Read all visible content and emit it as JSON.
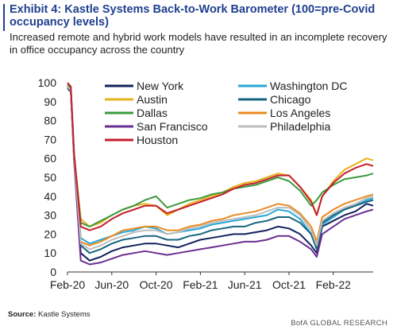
{
  "chart_data": {
    "type": "line",
    "title": "Exhibit 4: Kastle Systems Back-to-Work Barometer (100=pre-Covid occupancy levels)",
    "subtitle": "Increased remote and hybrid work models have resulted in an incomplete recovery in office occupancy across the country",
    "xlabel": "",
    "ylabel": "",
    "ylim": [
      0,
      100
    ],
    "yticks": [
      "0",
      "5",
      "10",
      "15",
      "20",
      "25",
      "30",
      "35",
      "40",
      "45",
      "50",
      "55",
      "60",
      "65",
      "70",
      "75",
      "80",
      "85",
      "90",
      "95",
      "100"
    ],
    "xticks": [
      "Feb-20",
      "Jun-20",
      "Oct-20",
      "Feb-21",
      "Jun-21",
      "Oct-21",
      "Feb-22"
    ],
    "grid": false,
    "legend_position": "top",
    "x": [
      0,
      0.3,
      0.6,
      1.2,
      2,
      3,
      4,
      5,
      6,
      7,
      8,
      9,
      10,
      11,
      12,
      13,
      14,
      15,
      16,
      17,
      18,
      19,
      20,
      21,
      22,
      22.5,
      23,
      24,
      25,
      26,
      27,
      27.6
    ],
    "series": [
      {
        "name": "New York",
        "color": "#13215e",
        "values": [
          98,
          96,
          60,
          10,
          6,
          8,
          11,
          13,
          14,
          15,
          15,
          14,
          13,
          15,
          17,
          18,
          19,
          20,
          20,
          21,
          22,
          24,
          23,
          20,
          14,
          10,
          24,
          27,
          30,
          32,
          36,
          35
        ]
      },
      {
        "name": "Washington DC",
        "color": "#27a7d6",
        "values": [
          98,
          96,
          60,
          18,
          15,
          17,
          19,
          21,
          22,
          24,
          23,
          20,
          21,
          22,
          23,
          25,
          26,
          27,
          28,
          29,
          30,
          33,
          32,
          28,
          20,
          12,
          25,
          29,
          33,
          35,
          38,
          39
        ]
      },
      {
        "name": "Austin",
        "color": "#e7b21d",
        "values": [
          99,
          97,
          62,
          28,
          24,
          26,
          30,
          33,
          35,
          36,
          35,
          30,
          33,
          36,
          38,
          40,
          42,
          45,
          47,
          48,
          50,
          52,
          51,
          45,
          38,
          30,
          40,
          48,
          54,
          57,
          60,
          59
        ]
      },
      {
        "name": "Chicago",
        "color": "#17647f",
        "values": [
          97,
          95,
          58,
          14,
          10,
          12,
          15,
          17,
          18,
          19,
          19,
          17,
          17,
          19,
          20,
          22,
          23,
          24,
          24,
          26,
          27,
          29,
          29,
          26,
          20,
          12,
          26,
          30,
          33,
          35,
          37,
          38
        ]
      },
      {
        "name": "Dallas",
        "color": "#3a9a3c",
        "values": [
          99,
          97,
          62,
          26,
          24,
          27,
          30,
          33,
          35,
          38,
          40,
          34,
          36,
          38,
          39,
          41,
          42,
          44,
          45,
          46,
          48,
          50,
          48,
          43,
          35,
          38,
          42,
          46,
          49,
          50,
          51,
          52
        ]
      },
      {
        "name": "Los Angeles",
        "color": "#ea8a22",
        "values": [
          98,
          96,
          60,
          16,
          14,
          16,
          19,
          22,
          23,
          24,
          24,
          22,
          22,
          24,
          25,
          27,
          28,
          30,
          31,
          32,
          34,
          36,
          35,
          31,
          24,
          16,
          29,
          33,
          36,
          38,
          40,
          41
        ]
      },
      {
        "name": "San Francisco",
        "color": "#6a2e8f",
        "values": [
          98,
          95,
          58,
          6,
          4,
          5,
          7,
          9,
          10,
          11,
          10,
          9,
          10,
          11,
          12,
          13,
          14,
          15,
          16,
          16,
          17,
          19,
          19,
          16,
          12,
          8,
          20,
          24,
          28,
          30,
          32,
          33
        ]
      },
      {
        "name": "Philadelphia",
        "color": "#bdbdbd",
        "values": [
          98,
          96,
          60,
          15,
          12,
          14,
          17,
          19,
          21,
          22,
          22,
          20,
          21,
          23,
          24,
          26,
          27,
          28,
          29,
          30,
          32,
          34,
          34,
          30,
          22,
          14,
          27,
          31,
          34,
          36,
          39,
          40
        ]
      },
      {
        "name": "Houston",
        "color": "#c41e2b",
        "values": [
          100,
          98,
          62,
          24,
          22,
          24,
          28,
          31,
          33,
          35,
          35,
          31,
          33,
          35,
          37,
          39,
          41,
          44,
          46,
          47,
          49,
          51,
          51,
          45,
          37,
          30,
          40,
          47,
          52,
          55,
          57,
          56
        ]
      }
    ]
  },
  "footer": {
    "source_label": "Source:",
    "source_text": "Kastle Systems",
    "brand": "BofA GLOBAL RESEARCH"
  }
}
